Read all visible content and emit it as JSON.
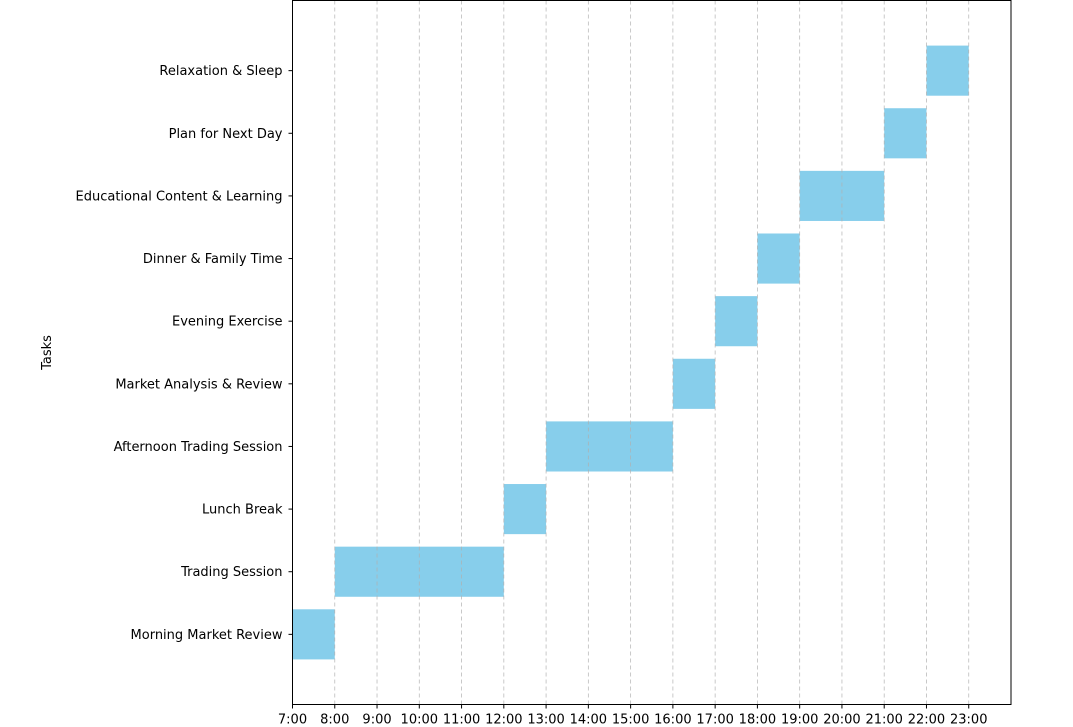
{
  "chart_data": {
    "type": "bar",
    "orientation": "horizontal",
    "title": "",
    "xlabel": "",
    "ylabel": "Tasks",
    "xlim": [
      7,
      24
    ],
    "x_ticks": [
      7,
      8,
      9,
      10,
      11,
      12,
      13,
      14,
      15,
      16,
      17,
      18,
      19,
      20,
      21,
      22,
      23
    ],
    "x_tick_labels": [
      "7:00",
      "8:00",
      "9:00",
      "10:00",
      "11:00",
      "12:00",
      "13:00",
      "14:00",
      "15:00",
      "16:00",
      "17:00",
      "18:00",
      "19:00",
      "20:00",
      "21:00",
      "22:00",
      "23:00"
    ],
    "grid": "x-dashed",
    "bar_color": "#87CEEB",
    "grid_color": "#b0b0b0",
    "tasks": [
      {
        "name": "Morning Market Review",
        "start": 7,
        "end": 8
      },
      {
        "name": "Trading Session",
        "start": 8,
        "end": 12
      },
      {
        "name": "Lunch Break",
        "start": 12,
        "end": 13
      },
      {
        "name": "Afternoon Trading Session",
        "start": 13,
        "end": 16
      },
      {
        "name": "Market Analysis & Review",
        "start": 16,
        "end": 17
      },
      {
        "name": "Evening Exercise",
        "start": 17,
        "end": 18
      },
      {
        "name": "Dinner & Family Time",
        "start": 18,
        "end": 19
      },
      {
        "name": "Educational Content & Learning",
        "start": 19,
        "end": 21
      },
      {
        "name": "Plan for Next Day",
        "start": 21,
        "end": 22
      },
      {
        "name": "Relaxation & Sleep",
        "start": 22,
        "end": 23
      }
    ]
  }
}
